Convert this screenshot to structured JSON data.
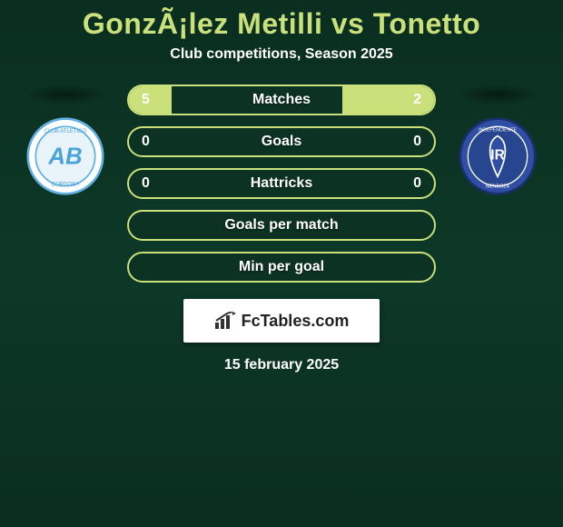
{
  "header": {
    "title": "GonzÃ¡lez Metilli vs Tonetto",
    "subtitle": "Club competitions, Season 2025",
    "title_color": "#cae07a",
    "subtitle_color": "#ffffff"
  },
  "accent_color": "#cae07a",
  "background_gradient": [
    "#0a2e1f",
    "#0d3827",
    "#0a2e1f"
  ],
  "bars": [
    {
      "label": "Matches",
      "left": "5",
      "right": "2",
      "left_fill_pct": 14,
      "right_fill_pct": 30
    },
    {
      "label": "Goals",
      "left": "0",
      "right": "0",
      "left_fill_pct": 0,
      "right_fill_pct": 0
    },
    {
      "label": "Hattricks",
      "left": "0",
      "right": "0",
      "left_fill_pct": 0,
      "right_fill_pct": 0
    },
    {
      "label": "Goals per match",
      "left": "",
      "right": "",
      "left_fill_pct": 0,
      "right_fill_pct": 0
    },
    {
      "label": "Min per goal",
      "left": "",
      "right": "",
      "left_fill_pct": 0,
      "right_fill_pct": 0
    }
  ],
  "left_club": {
    "name": "Club Atlético Belgrano",
    "badge_bg": "#ffffff",
    "badge_ring": "#5fb0e0",
    "badge_letters": "AB",
    "badge_letter_color": "#4aa3d8"
  },
  "right_club": {
    "name": "Independiente Rivadavia",
    "badge_bg": "#2e4fa3",
    "badge_ring": "#1a2f6b",
    "badge_letters": "IR",
    "badge_letter_color": "#ffffff"
  },
  "brand": {
    "text": "FcTables.com",
    "icon_name": "bar-chart-icon",
    "box_bg": "#ffffff",
    "text_color": "#222222"
  },
  "date": "15 february 2025"
}
